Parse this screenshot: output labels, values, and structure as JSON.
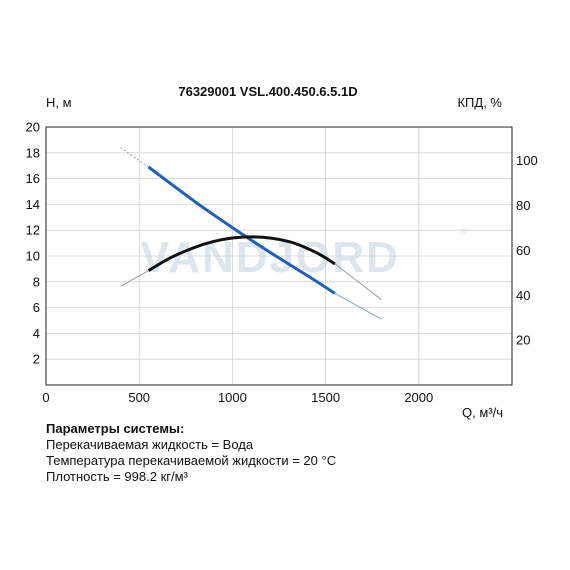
{
  "chart_data": {
    "type": "line",
    "title": "76329001 VSL.400.450.6.5.1D",
    "watermark": "VANDJORD",
    "ylabel": "H, м",
    "y2label": "КПД, %",
    "xlabel": "Q, м³/ч",
    "xlim": [
      0,
      2500
    ],
    "ylim": [
      0,
      20
    ],
    "y2lim": [
      0,
      115
    ],
    "x_ticks": [
      0,
      500,
      1000,
      1500,
      2000
    ],
    "y_ticks": [
      2,
      4,
      6,
      8,
      10,
      12,
      14,
      16,
      18,
      20
    ],
    "y2_ticks": [
      20,
      40,
      60,
      80,
      100
    ],
    "grid": true,
    "colors": {
      "head": "#1f5fbf",
      "head_ext": "#7fa6dd",
      "efficiency": "#111111",
      "efficiency_ext": "#9a9a9a",
      "watermark": "#dde6ef"
    },
    "series": [
      {
        "role": "head",
        "x": [
          400,
          550,
          800,
          1000,
          1200,
          1400,
          1550,
          1800
        ],
        "values": [
          18.4,
          16.9,
          14.2,
          12.2,
          10.3,
          8.5,
          7.1,
          5.1
        ],
        "operating_range": [
          550,
          1550
        ]
      },
      {
        "role": "efficiency",
        "x": [
          400,
          550,
          700,
          900,
          1100,
          1300,
          1450,
          1550,
          1800
        ],
        "values": [
          44,
          51,
          58,
          64,
          66,
          64,
          59,
          54,
          38
        ],
        "operating_range": [
          550,
          1550
        ]
      }
    ]
  },
  "system_params": {
    "heading": "Параметры системы:",
    "lines": [
      "Перекачиваемая жидкость = Вода",
      "Температура перекачиваемой жидкости = 20 °C",
      "Плотность = 998.2 кг/м³"
    ]
  }
}
